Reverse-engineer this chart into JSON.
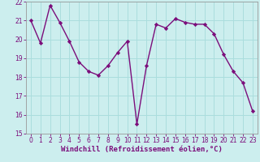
{
  "x": [
    0,
    1,
    2,
    3,
    4,
    5,
    6,
    7,
    8,
    9,
    10,
    11,
    12,
    13,
    14,
    15,
    16,
    17,
    18,
    19,
    20,
    21,
    22,
    23
  ],
  "y": [
    21.0,
    19.8,
    21.8,
    20.9,
    19.9,
    18.8,
    18.3,
    18.1,
    18.6,
    19.3,
    19.9,
    15.5,
    18.6,
    20.8,
    20.6,
    21.1,
    20.9,
    20.8,
    20.8,
    20.3,
    19.2,
    18.3,
    17.7,
    16.2
  ],
  "line_color": "#7b0d7b",
  "marker": "D",
  "marker_size": 2.2,
  "bg_color": "#cceeee",
  "grid_color": "#aadddd",
  "xlabel": "Windchill (Refroidissement éolien,°C)",
  "xlabel_fontsize": 6.5,
  "ylim": [
    15,
    22
  ],
  "xlim": [
    -0.5,
    23.5
  ],
  "yticks": [
    15,
    16,
    17,
    18,
    19,
    20,
    21,
    22
  ],
  "xticks": [
    0,
    1,
    2,
    3,
    4,
    5,
    6,
    7,
    8,
    9,
    10,
    11,
    12,
    13,
    14,
    15,
    16,
    17,
    18,
    19,
    20,
    21,
    22,
    23
  ],
  "tick_fontsize": 5.5,
  "line_width": 1.0
}
